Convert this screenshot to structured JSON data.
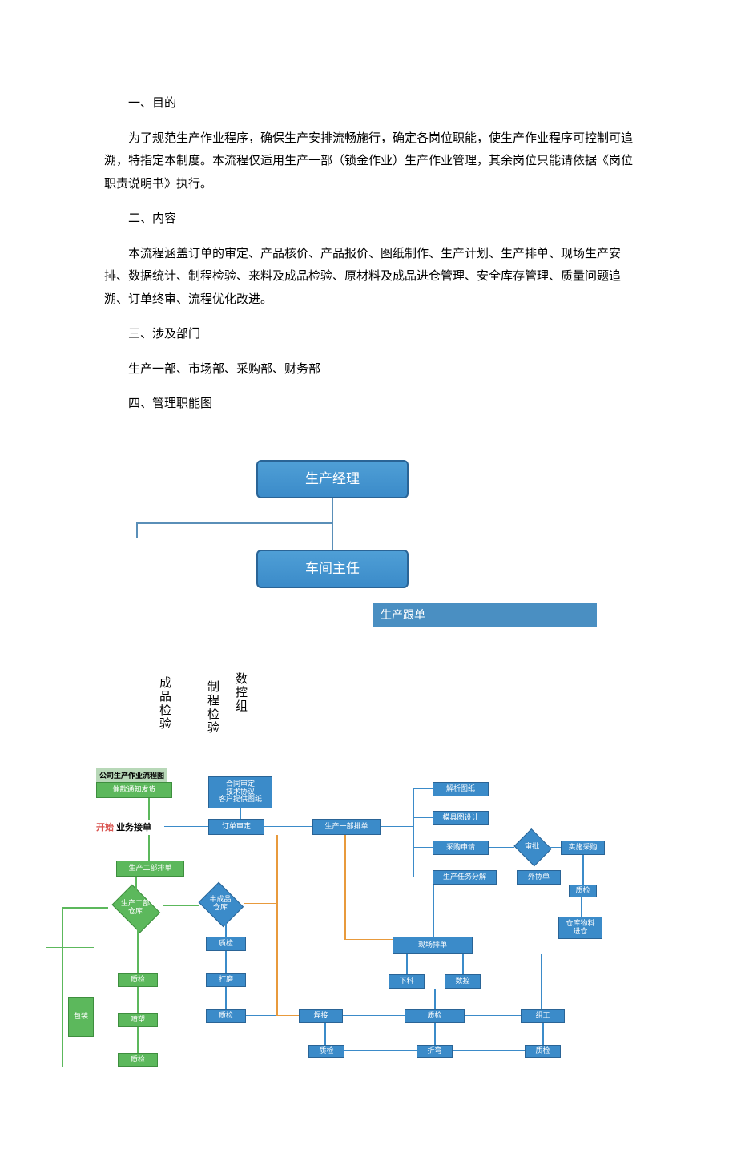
{
  "text": {
    "s1_title": "一、目的",
    "s1_body": "为了规范生产作业程序，确保生产安排流畅施行，确定各岗位职能，使生产作业程序可控制可追溯，特指定本制度。本流程仅适用生产一部（锁金作业）生产作业管理，其余岗位只能请依据《岗位职责说明书》执行。",
    "s2_title": "二、内容",
    "s2_body": "本流程涵盖订单的审定、产品核价、产品报价、图纸制作、生产计划、生产排单、现场生产安排、数据统计、制程检验、来料及成品检验、原材料及成品进仓管理、安全库存管理、质量问题追溯、订单终审、流程优化改进。",
    "s3_title": "三、涉及部门",
    "s3_body": "生产一部、市场部、采购部、财务部",
    "s4_title": "四、管理职能图"
  },
  "org": {
    "top": "生产经理",
    "mid": "车间主任",
    "follow": "生产跟单",
    "v1": "成品检验",
    "v2": "制程检验",
    "v3": "数控组",
    "colors": {
      "box_bg_top": "#4f9fd6",
      "box_bg_bot": "#3b8bc9",
      "box_border": "#2a6496",
      "strip_bg": "#4a8fc2",
      "line": "#5a8fb8",
      "text": "#ffffff"
    }
  },
  "flow": {
    "title": "公司生产作业流程图",
    "start": "开始",
    "nodes": {
      "n_notify": "催款通知发货",
      "n_order": "业务接单",
      "n_review": "订单审定",
      "n_contract": "合同审定\n技术协议\n客户提供图纸",
      "n_dept1": "生产一部排单",
      "n_dept2": "生产二部排单",
      "n_dept2wh": "生产二部\n仓库",
      "n_semi": "半成品\n仓库",
      "n_qc1": "质检",
      "n_grind": "打磨",
      "n_qc2": "质检",
      "n_weld": "焊接",
      "n_qc3": "质检",
      "n_spray": "喷塑",
      "n_qc4": "质检",
      "n_pack": "包装",
      "n_drawings": "解析图纸",
      "n_mold": "模具图设计",
      "n_purchase_apply": "采购申请",
      "n_approve": "审批",
      "n_purchase_impl": "实施采购",
      "n_task": "生产任务分解",
      "n_replace": "外协单",
      "n_qc_mat": "质检",
      "n_stock": "仓库物料\n进仓",
      "n_schedule": "现场排单",
      "n_cut": "下料",
      "n_cnc": "数控",
      "n_qc5": "质检",
      "n_assy": "组工",
      "n_bend": "折弯",
      "n_qc6": "质检"
    },
    "colors": {
      "blue_bg": "#3b8bc9",
      "blue_border": "#2a6496",
      "green_bg": "#5cb85c",
      "green_border": "#3e8e3e",
      "orange": "#e89a3c",
      "title_bg": "#b8d8b8",
      "red": "#d9534f",
      "text": "#ffffff"
    }
  }
}
